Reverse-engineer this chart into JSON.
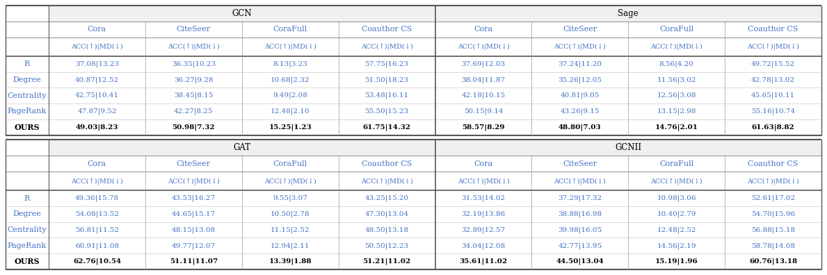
{
  "sections_top": [
    "GCN",
    "Sage"
  ],
  "sections_bot": [
    "GAT",
    "GCNII"
  ],
  "datasets": [
    "Cora",
    "CiteSeer",
    "CoraFull",
    "Coauthor CS"
  ],
  "row_labels": [
    "R",
    "Degree",
    "Centrality",
    "PageRank",
    "OURS"
  ],
  "data": {
    "GCN": {
      "Cora": [
        "37.08|13.23",
        "40.87|12.52",
        "42.75|10.41",
        "47.87|9.52",
        "49.03|8.23"
      ],
      "CiteSeer": [
        "36.35|10.23",
        "36.27|9.28",
        "38.45|8.15",
        "42.27|8.25",
        "50.98|7.32"
      ],
      "CoraFull": [
        "8.13|3.23",
        "10.68|2.32",
        "9.49|2.08",
        "12.48|2.10",
        "15.25|1.23"
      ],
      "Coauthor CS": [
        "57.75|16.23",
        "51.50|18.23",
        "53.48|16.11",
        "55.50|15.23",
        "61.75|14.32"
      ]
    },
    "Sage": {
      "Cora": [
        "37.69|12.03",
        "38.04|11.87",
        "42.18|10.15",
        "50.15|9.14",
        "58.57|8.29"
      ],
      "CiteSeer": [
        "37.24|11.20",
        "35.26|12.05",
        "40.81|9.05",
        "43.26|9.15",
        "48.80|7.03"
      ],
      "CoraFull": [
        "8.56|4.20",
        "11.56|3.02",
        "12.56|3.08",
        "13.15|2.98",
        "14.76|2.01"
      ],
      "Coauthor CS": [
        "49.72|15.52",
        "42.78|13.02",
        "45.65|10.11",
        "55.16|10.74",
        "61.63|8.82"
      ]
    },
    "GAT": {
      "Cora": [
        "49.36|15.78",
        "54.08|13.52",
        "56.81|11.52",
        "60.91|11.08",
        "62.76|10.54"
      ],
      "CiteSeer": [
        "43.53|16.27",
        "44.65|15.17",
        "48.15|13.08",
        "49.77|12.07",
        "51.11|11.07"
      ],
      "CoraFull": [
        "9.55|3.07",
        "10.50|2.78",
        "11.15|2.52",
        "12.94|2.11",
        "13.39|1.88"
      ],
      "Coauthor CS": [
        "43.25|15.20",
        "47.30|13.04",
        "48.50|13.18",
        "50.50|12.23",
        "51.21|11.02"
      ]
    },
    "GCNII": {
      "Cora": [
        "31.53|14.02",
        "32.19|13.86",
        "32.89|12.57",
        "34.04|12.08",
        "35.61|11.02"
      ],
      "CiteSeer": [
        "37.29|17.32",
        "38.88|16.98",
        "39.98|16.05",
        "42.77|13.95",
        "44.50|13.04"
      ],
      "CoraFull": [
        "10.98|3.06",
        "10.40|2.79",
        "12.48|2.52",
        "14.56|2.19",
        "15.19|1.96"
      ],
      "Coauthor CS": [
        "52.61|17.02",
        "54.70|15.96",
        "56.88|15.18",
        "58.78|14.08",
        "60.76|13.18"
      ]
    }
  },
  "text_color": "#4472c4",
  "bold_text_color": "#000000",
  "line_color_heavy": "#555555",
  "line_color_light": "#999999",
  "bg_color": "#ffffff",
  "font_size_section": 8.5,
  "font_size_dataset": 8.0,
  "font_size_colhdr": 7.0,
  "font_size_data": 7.5,
  "font_size_rowlabel": 8.0
}
